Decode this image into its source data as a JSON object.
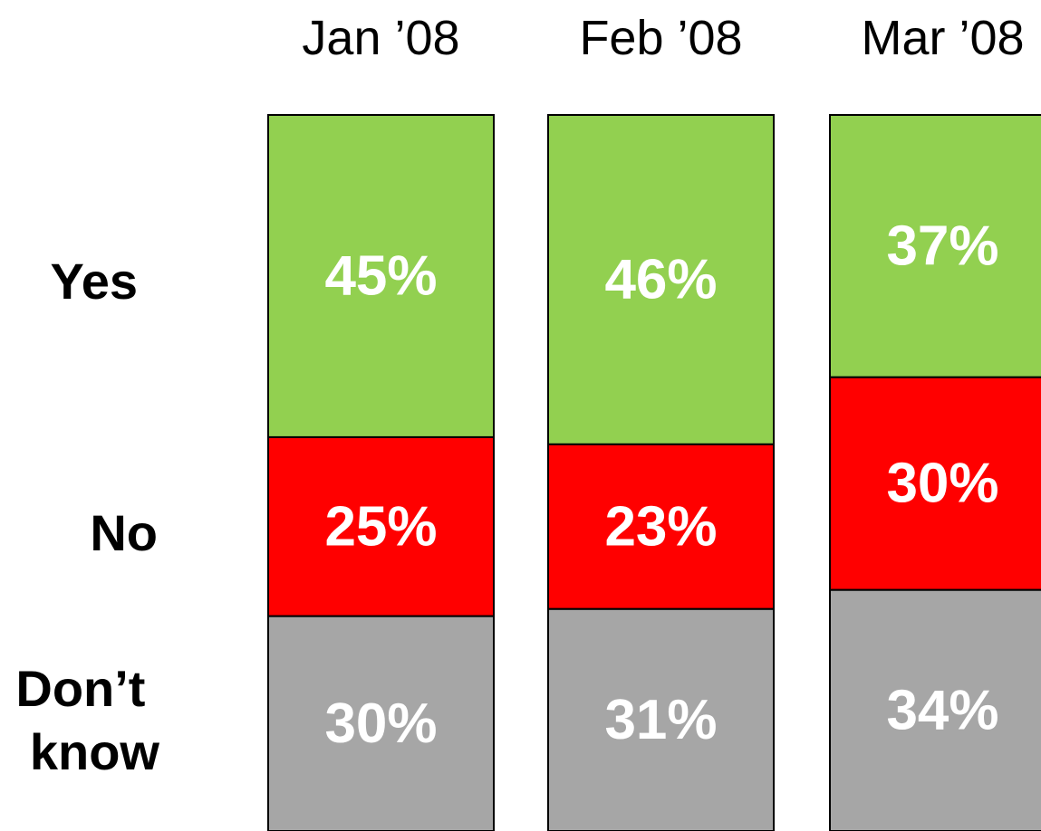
{
  "chart_data": {
    "type": "bar",
    "stacked": true,
    "stack_percent": true,
    "categories": [
      "Jan ’08",
      "Feb ’08",
      "Mar ’08"
    ],
    "series": [
      {
        "name": "Yes",
        "values": [
          45,
          46,
          37
        ],
        "labels": [
          "45%",
          "46%",
          "37%"
        ],
        "color": "#92d050"
      },
      {
        "name": "No",
        "values": [
          25,
          23,
          30
        ],
        "labels": [
          "25%",
          "23%",
          "30%"
        ],
        "color": "#ff0000"
      },
      {
        "name": "Don’t know",
        "values": [
          30,
          31,
          34
        ],
        "labels": [
          "30%",
          "31%",
          "34%"
        ],
        "color": "#a6a6a6"
      }
    ],
    "legend": "left",
    "row_labels": [
      "Yes",
      "No",
      "Don’t know"
    ],
    "grid": false,
    "ylim": [
      0,
      100
    ]
  }
}
